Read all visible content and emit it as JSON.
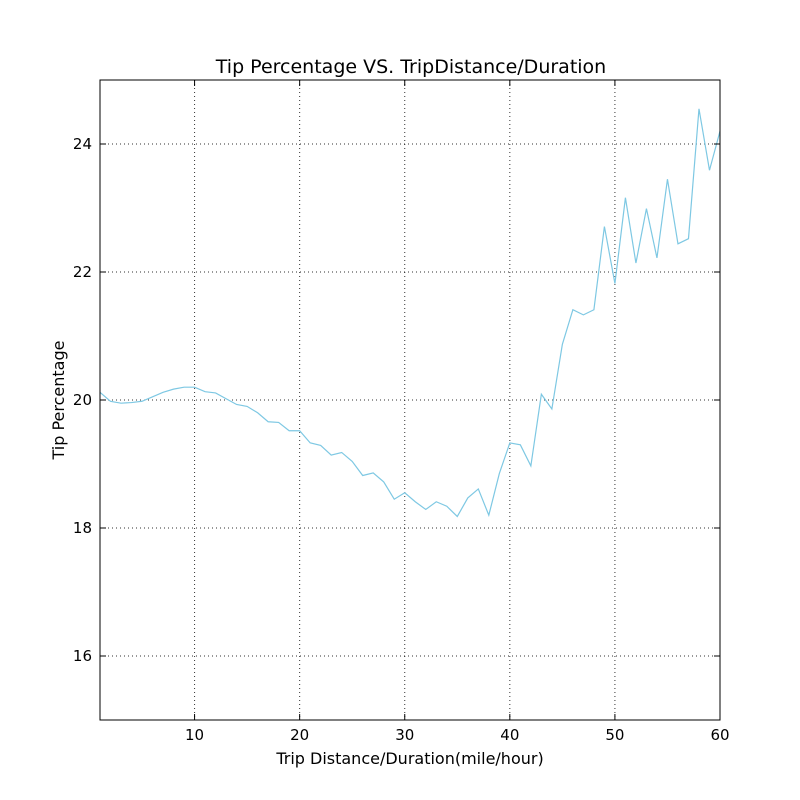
{
  "chart_data": {
    "type": "line",
    "title": "Tip Percentage VS. TripDistance/Duration",
    "xlabel": "Trip Distance/Duration(mile/hour)",
    "ylabel": "Tip Percentage",
    "xlim": [
      1,
      60
    ],
    "ylim": [
      15,
      25
    ],
    "xticks": [
      10,
      20,
      30,
      40,
      50,
      60
    ],
    "yticks": [
      16,
      18,
      20,
      22,
      24
    ],
    "grid": true,
    "series": [
      {
        "color": "#7ec8e3",
        "x": [
          1,
          2,
          3,
          4,
          5,
          6,
          7,
          8,
          9,
          10,
          11,
          12,
          13,
          14,
          15,
          16,
          17,
          18,
          19,
          20,
          21,
          22,
          23,
          24,
          25,
          26,
          27,
          28,
          29,
          30,
          31,
          32,
          33,
          34,
          35,
          36,
          37,
          38,
          39,
          40,
          41,
          42,
          43,
          44,
          45,
          46,
          47,
          48,
          49,
          50,
          51,
          52,
          53,
          54,
          55,
          56,
          57,
          58,
          59,
          60
        ],
        "y": [
          20.12,
          19.98,
          19.95,
          19.96,
          19.98,
          20.05,
          20.12,
          20.17,
          20.2,
          20.2,
          20.13,
          20.11,
          20.02,
          19.93,
          19.9,
          19.8,
          19.66,
          19.65,
          19.52,
          19.52,
          19.33,
          19.29,
          19.14,
          19.18,
          19.04,
          18.82,
          18.86,
          18.72,
          18.45,
          18.55,
          18.41,
          18.29,
          18.41,
          18.34,
          18.18,
          18.47,
          18.61,
          18.2,
          18.85,
          19.33,
          19.3,
          18.97,
          20.09,
          19.86,
          20.87,
          21.41,
          21.33,
          21.41,
          22.71,
          21.82,
          23.16,
          22.14,
          22.99,
          22.22,
          23.45,
          22.44,
          22.52,
          24.55,
          23.59,
          24.2
        ]
      }
    ]
  }
}
